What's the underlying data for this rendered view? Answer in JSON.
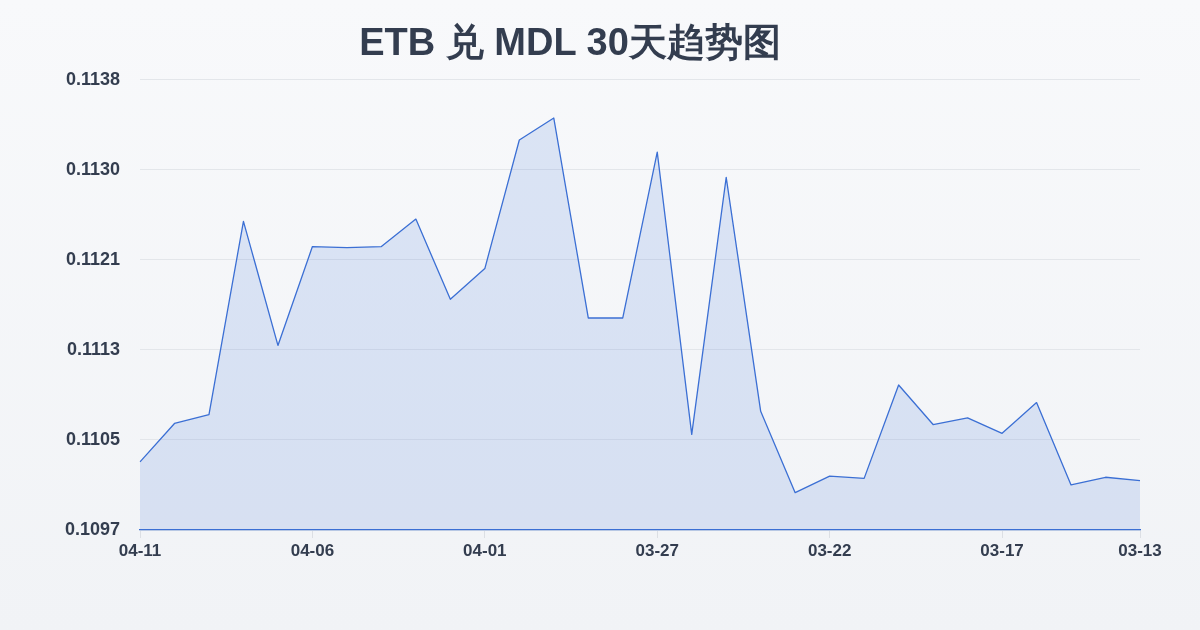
{
  "chart_data": {
    "type": "area",
    "title": "ETB 兑 MDL 30天趋势图",
    "categories": [
      "04-11",
      null,
      null,
      null,
      null,
      "04-06",
      null,
      null,
      null,
      null,
      "04-01",
      null,
      null,
      null,
      null,
      "03-27",
      null,
      null,
      null,
      null,
      "03-22",
      null,
      null,
      null,
      null,
      "03-17",
      null,
      null,
      null,
      "03-13"
    ],
    "values": [
      0.1103,
      0.11065,
      0.11073,
      0.11249,
      0.11136,
      0.11226,
      0.11225,
      0.11226,
      0.11251,
      0.11178,
      0.11206,
      0.11323,
      0.11343,
      0.11161,
      0.11161,
      0.11312,
      0.11055,
      0.11289,
      0.11076,
      0.11002,
      0.11017,
      0.11015,
      0.111,
      0.11064,
      0.1107,
      0.11056,
      0.11084,
      0.11009,
      0.11016,
      0.11013
    ],
    "color": "#3b6fd4",
    "ylim": [
      0.10968,
      0.11378
    ],
    "yticks": [
      {
        "value": 0.10968,
        "label": "0.1097"
      },
      {
        "value": 0.1105,
        "label": "0.1105"
      },
      {
        "value": 0.11132,
        "label": "0.1113"
      },
      {
        "value": 0.11214,
        "label": "0.1121"
      },
      {
        "value": 0.11296,
        "label": "0.1130"
      },
      {
        "value": 0.11378,
        "label": "0.1138"
      }
    ],
    "grid": "y"
  }
}
